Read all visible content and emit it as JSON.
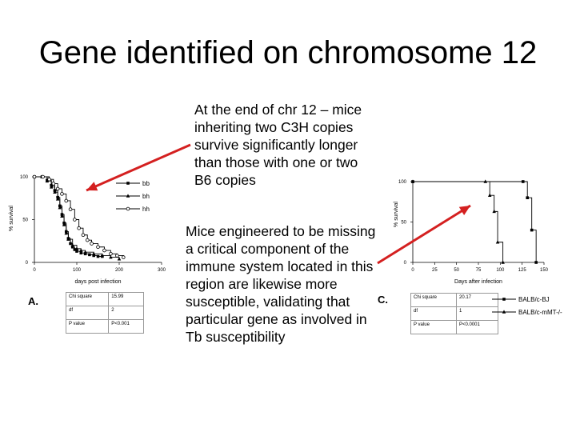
{
  "slide": {
    "title": "Gene identified on chromosome 12",
    "note_top": "At the end of chr 12 – mice inheriting two C3H copies survive significantly longer than those with one or two B6 copies",
    "note_bottom": "Mice engineered to be missing a critical component of the immune system located in this region are likewise more susceptible, validating that particular gene as involved in Tb susceptibility",
    "panel_a": "A.",
    "panel_c": "C.",
    "arrow_color": "#d42020"
  },
  "chart_data": [
    {
      "type": "line",
      "step": true,
      "xlabel": "days post infection",
      "ylabel": "% survival",
      "xlim": [
        0,
        300
      ],
      "ylim": [
        0,
        100
      ],
      "xticks": [
        "0",
        "100",
        "200",
        "300"
      ],
      "yticks": [
        "0",
        "50",
        "100"
      ],
      "series": [
        {
          "name": "bb",
          "marker": "square",
          "x": [
            0,
            18,
            30,
            40,
            48,
            55,
            60,
            65,
            70,
            75,
            80,
            85,
            90,
            95,
            100,
            110,
            120,
            130,
            140,
            150,
            160
          ],
          "y": [
            100,
            100,
            96,
            90,
            84,
            76,
            66,
            56,
            46,
            36,
            28,
            22,
            18,
            15,
            13,
            11,
            10,
            9,
            8,
            7,
            7
          ]
        },
        {
          "name": "bh",
          "marker": "triangle",
          "x": [
            0,
            18,
            30,
            40,
            48,
            55,
            60,
            65,
            70,
            75,
            80,
            90,
            100,
            110,
            120,
            140,
            160,
            180,
            200
          ],
          "y": [
            100,
            100,
            95,
            88,
            82,
            74,
            64,
            54,
            44,
            34,
            27,
            20,
            16,
            14,
            12,
            10,
            8,
            6,
            4
          ]
        },
        {
          "name": "hh",
          "marker": "circle",
          "x": [
            0,
            20,
            35,
            45,
            55,
            65,
            75,
            85,
            95,
            105,
            115,
            125,
            135,
            150,
            165,
            180,
            195,
            210
          ],
          "y": [
            100,
            100,
            97,
            92,
            86,
            80,
            72,
            62,
            50,
            40,
            32,
            26,
            22,
            18,
            14,
            10,
            8,
            6
          ]
        }
      ],
      "stats": [
        [
          "Chi square",
          "15.99"
        ],
        [
          "df",
          "2"
        ],
        [
          "P value",
          "P<0.001"
        ]
      ]
    },
    {
      "type": "line",
      "step": true,
      "xlabel": "Days after infection",
      "ylabel": "% survival",
      "xlim": [
        0,
        150
      ],
      "ylim": [
        0,
        100
      ],
      "xticks": [
        "0",
        "25",
        "50",
        "75",
        "100",
        "125",
        "150"
      ],
      "yticks": [
        "0",
        "50",
        "100"
      ],
      "series": [
        {
          "name": "BALB/c-BJ",
          "marker": "square",
          "x": [
            0,
            126,
            131,
            136,
            141
          ],
          "y": [
            100,
            100,
            80,
            40,
            0
          ]
        },
        {
          "name": "BALB/c-mМT-/-",
          "marker": "triangle",
          "x": [
            0,
            83,
            88,
            93,
            97,
            103
          ],
          "y": [
            100,
            100,
            83,
            63,
            25,
            0
          ]
        }
      ],
      "stats": [
        [
          "Chi square",
          "20.17"
        ],
        [
          "df",
          "1"
        ],
        [
          "P value",
          "P<0.0001"
        ]
      ]
    }
  ]
}
